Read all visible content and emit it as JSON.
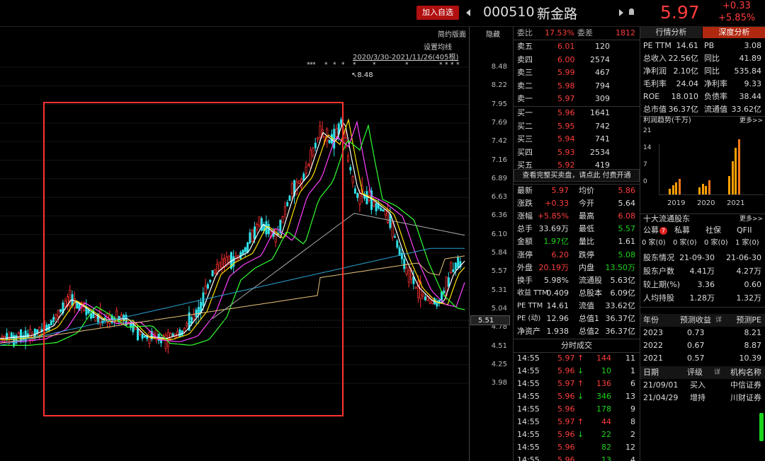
{
  "header": {
    "watch_label": "加入自选",
    "code": "000510",
    "name": "新金路",
    "price": "5.97",
    "change": "+0.33",
    "change_pct": "+5.85%"
  },
  "chart": {
    "ctl_simple": "简约版面",
    "ctl_collapse": "隐藏",
    "ma_settings": "设置均线",
    "range": "2020/3/30-2021/11/26(405根)",
    "high_label": "8.48",
    "current_tag": "5.51",
    "ticks": [
      "8.48",
      "8.22",
      "7.95",
      "7.69",
      "7.42",
      "7.16",
      "6.89",
      "6.63",
      "6.36",
      "6.10",
      "5.84",
      "5.57",
      "5.31",
      "5.04",
      "4.78",
      "4.51",
      "4.25",
      "3.98"
    ]
  },
  "orderbook": {
    "wb_label": "委比",
    "wb": "17.53%",
    "wc_label": "委差",
    "wc": "1812",
    "asks": [
      [
        "卖五",
        "6.01",
        "120"
      ],
      [
        "卖四",
        "6.00",
        "2574"
      ],
      [
        "卖三",
        "5.99",
        "467"
      ],
      [
        "卖二",
        "5.98",
        "794"
      ],
      [
        "卖一",
        "5.97",
        "309"
      ]
    ],
    "bids": [
      [
        "买一",
        "5.96",
        "1641"
      ],
      [
        "买二",
        "5.95",
        "742"
      ],
      [
        "买三",
        "5.94",
        "741"
      ],
      [
        "买四",
        "5.93",
        "2534"
      ],
      [
        "买五",
        "5.92",
        "419"
      ]
    ],
    "full_book": "查看完整买卖盘，请点此 付费开通"
  },
  "quote": [
    [
      "最新",
      "5.97",
      "red",
      "均价",
      "5.86",
      "red"
    ],
    [
      "涨跌",
      "+0.33",
      "red",
      "今开",
      "5.64",
      "wh"
    ],
    [
      "涨幅",
      "+5.85%",
      "red",
      "最高",
      "6.08",
      "red"
    ],
    [
      "总手",
      "33.69万",
      "wh",
      "最低",
      "5.57",
      "green"
    ],
    [
      "金额",
      "1.97亿",
      "green",
      "量比",
      "1.61",
      "wh"
    ],
    [
      "涨停",
      "6.20",
      "red",
      "跌停",
      "5.08",
      "green"
    ],
    [
      "外盘",
      "20.19万",
      "red",
      "内盘",
      "13.50万",
      "green"
    ],
    [
      "换手",
      "5.98%",
      "wh",
      "流通股",
      "5.63亿",
      "wh"
    ],
    [
      "收益 TTM",
      "0.409",
      "wh",
      "总股本",
      "6.09亿",
      "wh"
    ],
    [
      "PE TTM",
      "14.61",
      "wh",
      "流值",
      "33.62亿",
      "wh"
    ],
    [
      "PE (动)",
      "12.96",
      "wh",
      "总值1",
      "36.37亿",
      "wh"
    ],
    [
      "净资产",
      "1.938",
      "wh",
      "总值2",
      "36.37亿",
      "wh"
    ]
  ],
  "ticks_title": "分时成交",
  "trades": [
    [
      "14:55",
      "5.97",
      "↑",
      "144",
      "11",
      "red"
    ],
    [
      "14:55",
      "5.96",
      "↓",
      "10",
      "1",
      "green"
    ],
    [
      "14:55",
      "5.97",
      "↑",
      "136",
      "6",
      "red"
    ],
    [
      "14:55",
      "5.96",
      "↓",
      "346",
      "13",
      "green"
    ],
    [
      "14:55",
      "5.96",
      "",
      "178",
      "9",
      "green"
    ],
    [
      "14:55",
      "5.97",
      "↑",
      "44",
      "8",
      "red"
    ],
    [
      "14:55",
      "5.96",
      "↓",
      "22",
      "2",
      "green"
    ],
    [
      "14:55",
      "5.96",
      "",
      "82",
      "12",
      "green"
    ],
    [
      "14:55",
      "5.96",
      "",
      "13",
      "4",
      "green"
    ]
  ],
  "right": {
    "tab1": "行情分析",
    "tab2": "深度分析",
    "fund": [
      [
        "PE TTM",
        "14.61",
        "PB",
        "3.08"
      ],
      [
        "总收入",
        "22.56亿",
        "同比",
        "41.89"
      ],
      [
        "净利润",
        "2.10亿",
        "同比",
        "535.84"
      ],
      [
        "毛利率",
        "24.04",
        "净利率",
        "9.33"
      ],
      [
        "ROE",
        "18.010",
        "负债率",
        "38.44"
      ],
      [
        "总市值",
        "36.37亿",
        "流通值",
        "33.62亿"
      ]
    ],
    "profit_title": "利润趋势(千万)",
    "more": "更多>>",
    "profit_ticks": [
      "21",
      "14",
      "7",
      "0"
    ],
    "years": [
      "2019",
      "2020",
      "2021"
    ],
    "profit_bars": [
      [
        2.5,
        4.2,
        5.2,
        6.8
      ],
      [
        3.3,
        4.8,
        3.8,
        6.1
      ],
      [
        8.0,
        14.0,
        19.5,
        23.0
      ]
    ],
    "holders_title": "十大流通股东",
    "holder_types": [
      "公募",
      "私募",
      "社保",
      "QFII"
    ],
    "holder_badge": "7",
    "holder_counts": [
      "0 家(0)",
      "0 家(0)",
      "0 家(0)",
      "1 家(0)"
    ],
    "holder_rows": [
      [
        "股东情况",
        "21-09-30",
        "21-06-30"
      ],
      [
        "股东户数",
        "4.41万",
        "4.27万"
      ],
      [
        "较上期(%)",
        "3.36",
        "0.60"
      ],
      [
        "人均持股",
        "1.28万",
        "1.32万"
      ]
    ],
    "fc_head": [
      "年份",
      "预测收益",
      "详",
      "预测PE"
    ],
    "fc_rows": [
      [
        "2023",
        "0.73",
        "8.21"
      ],
      [
        "2022",
        "0.67",
        "8.87"
      ],
      [
        "2021",
        "0.57",
        "10.39"
      ]
    ],
    "rt_head": [
      "日期",
      "评级",
      "详",
      "机构名称"
    ],
    "rt_rows": [
      [
        "21/09/01",
        "买入",
        "中信证券"
      ],
      [
        "21/04/29",
        "增持",
        "川财证券"
      ]
    ]
  }
}
